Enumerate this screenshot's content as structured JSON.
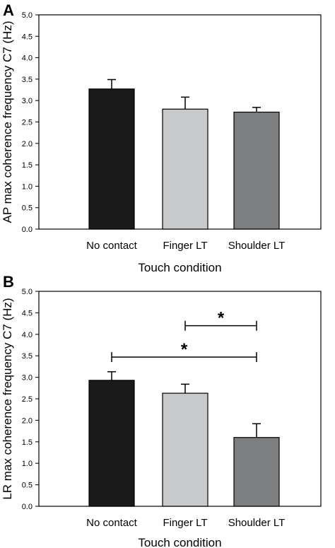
{
  "chart_data": [
    {
      "type": "bar",
      "panel_label": "A",
      "ylabel": "AP max coherence frequency C7 (Hz)",
      "xlabel": "Touch condition",
      "ylim": [
        0,
        5
      ],
      "yticks": [
        "0.0",
        "0.5",
        "1.0",
        "1.5",
        "2.0",
        "2.5",
        "3.0",
        "3.5",
        "4.0",
        "4.5",
        "5.0"
      ],
      "categories": [
        "No contact",
        "Finger LT",
        "Shoulder LT"
      ],
      "values": [
        3.27,
        2.8,
        2.73
      ],
      "errors": [
        0.22,
        0.28,
        0.11
      ],
      "colors": [
        "#1a1a1a",
        "#c8c9cb",
        "#7d7e80"
      ],
      "significance": []
    },
    {
      "type": "bar",
      "panel_label": "B",
      "ylabel": "LR max coherence frequency C7 (Hz)",
      "xlabel": "Touch condition",
      "ylim": [
        0,
        5
      ],
      "yticks": [
        "0.0",
        "0.5",
        "1.0",
        "1.5",
        "2.0",
        "2.5",
        "3.0",
        "3.5",
        "4.0",
        "4.5",
        "5.0"
      ],
      "categories": [
        "No contact",
        "Finger LT",
        "Shoulder LT"
      ],
      "values": [
        2.93,
        2.63,
        1.6
      ],
      "errors": [
        0.2,
        0.21,
        0.32
      ],
      "colors": [
        "#1a1a1a",
        "#c8c9cb",
        "#7d7e80"
      ],
      "significance": [
        {
          "from": 1,
          "to": 2,
          "y": 4.2,
          "label": "*"
        },
        {
          "from": 0,
          "to": 2,
          "y": 3.47,
          "label": "*"
        }
      ]
    }
  ]
}
